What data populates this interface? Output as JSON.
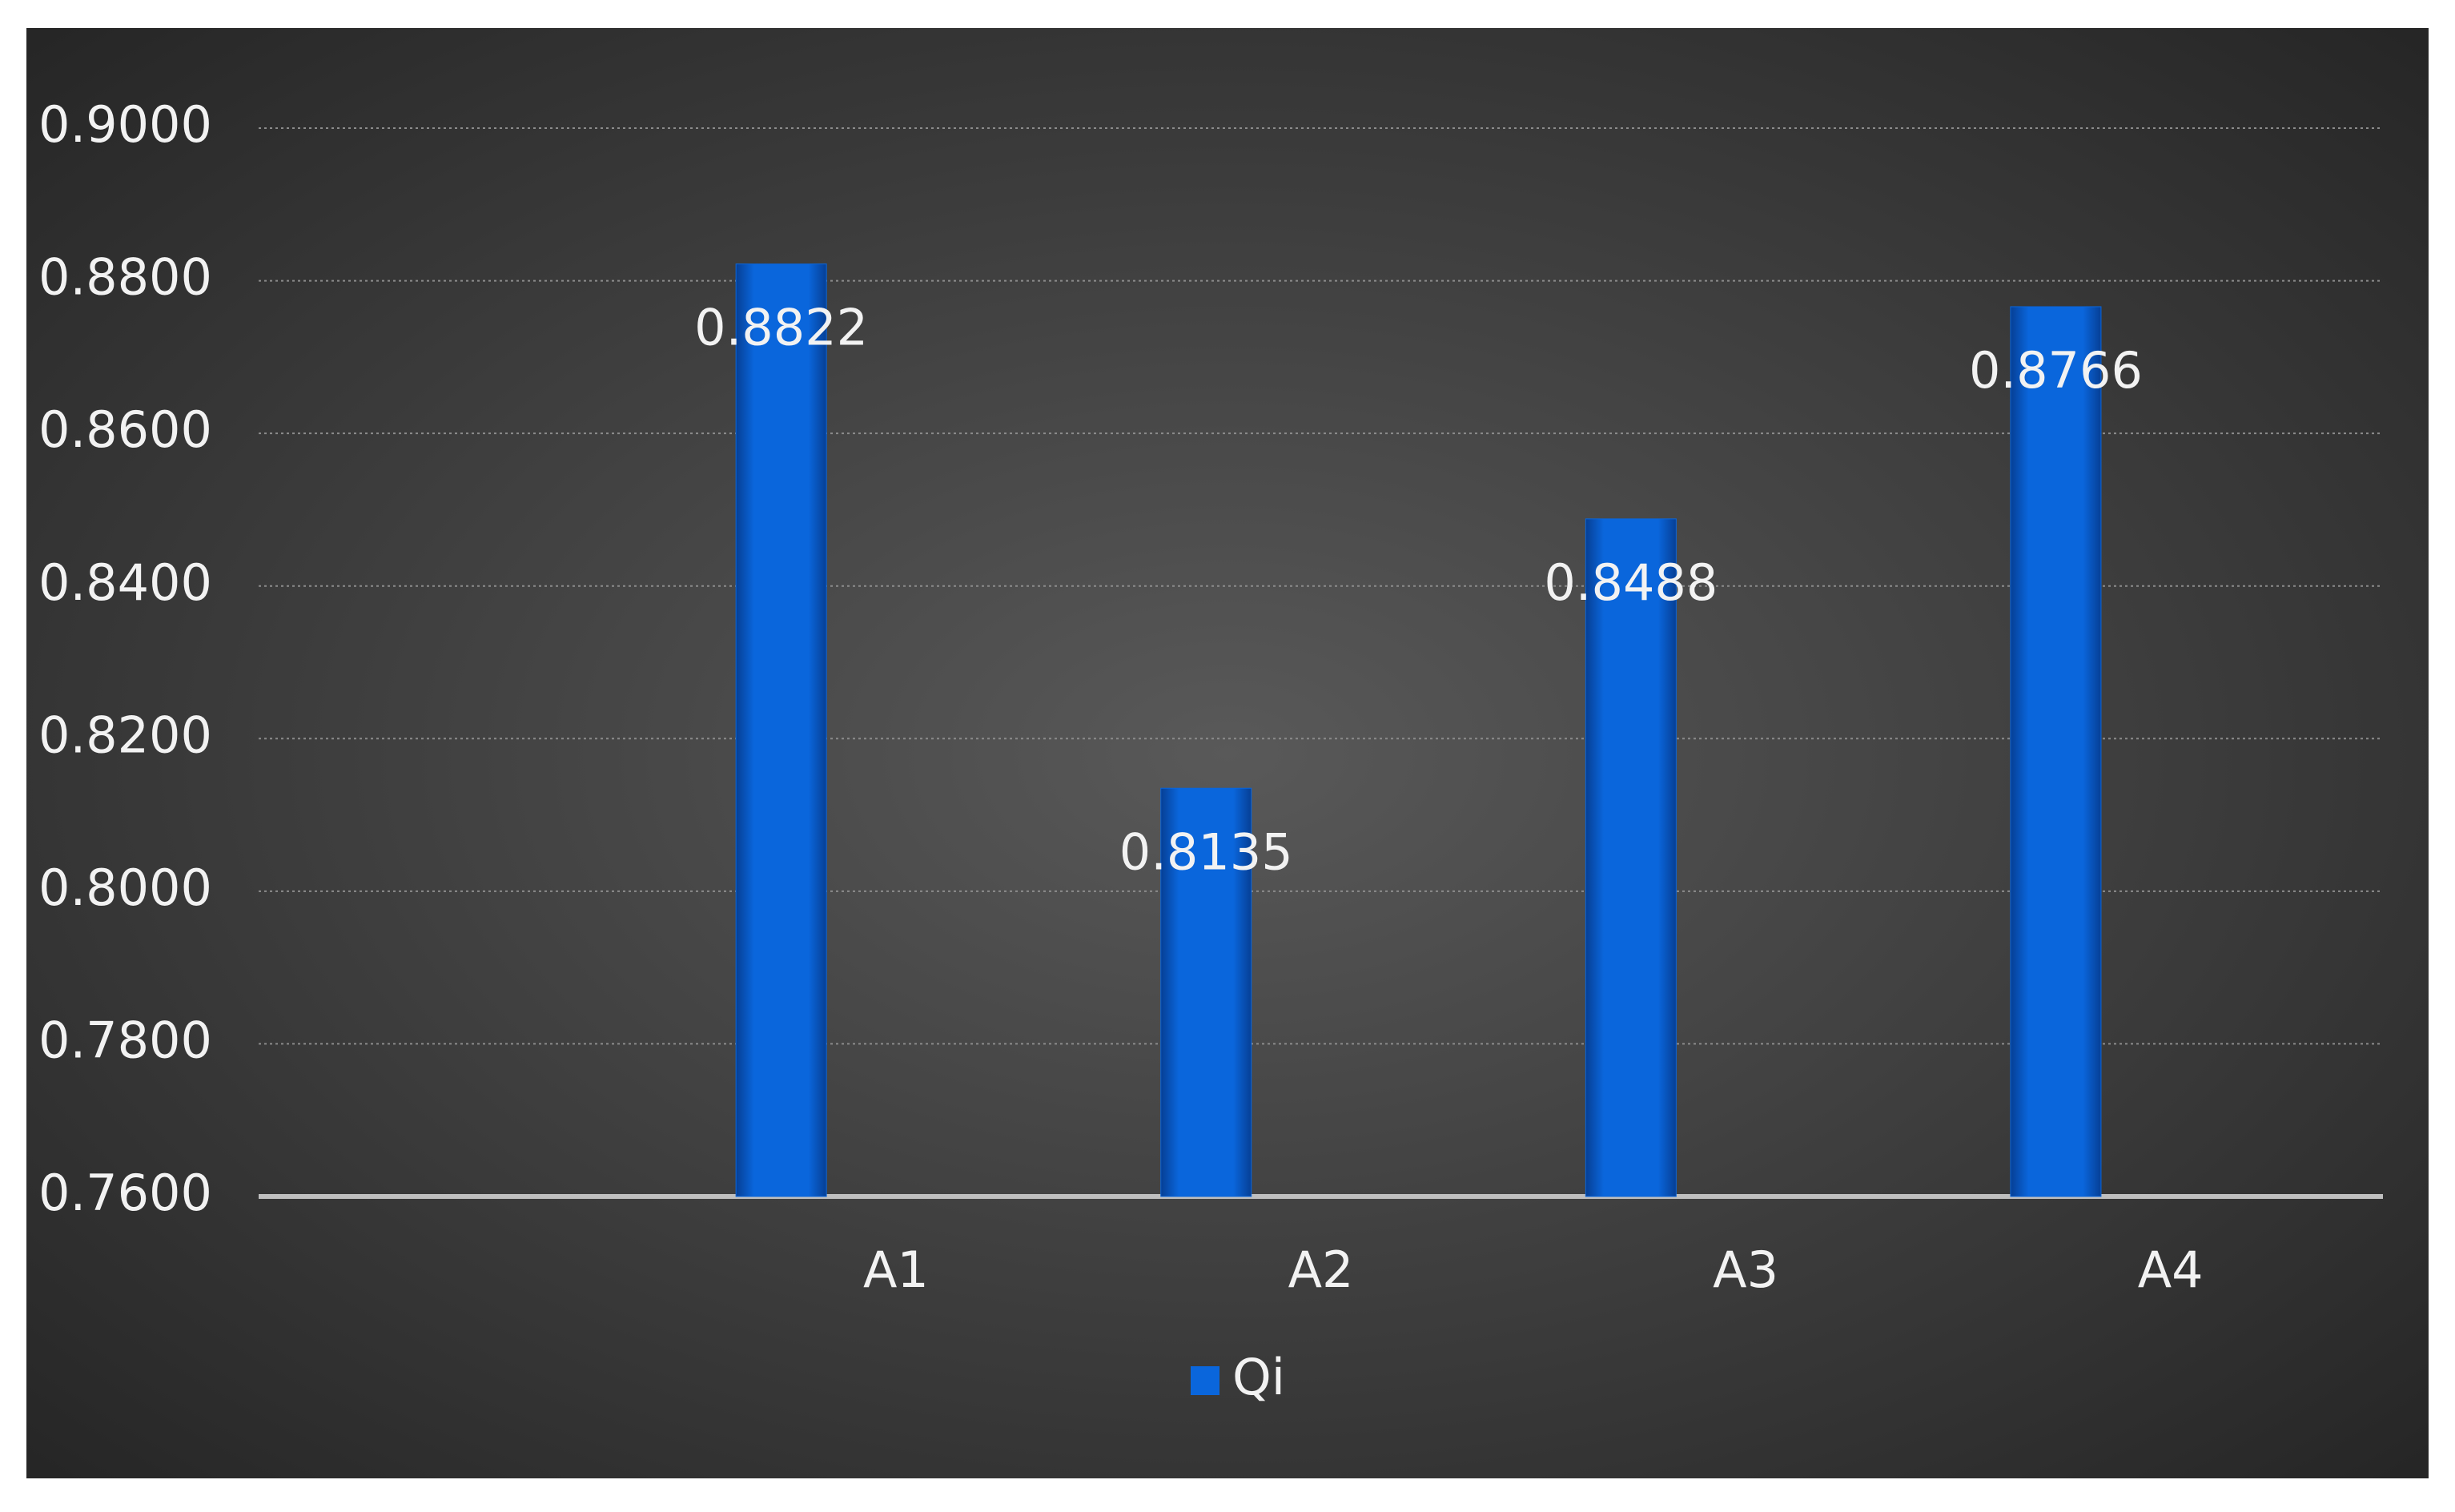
{
  "chart_data": {
    "type": "bar",
    "categories": [
      null,
      "A1",
      "A2",
      "A3",
      "A4"
    ],
    "series": [
      {
        "name": "Qi",
        "color": "#0a66dc",
        "values": [
          null,
          0.8822,
          0.8135,
          0.8488,
          0.8766
        ]
      }
    ],
    "ylim": [
      0.76,
      0.9
    ],
    "yticks": [
      {
        "value": 0.76,
        "label": "0.7600"
      },
      {
        "value": 0.78,
        "label": "0.7800"
      },
      {
        "value": 0.8,
        "label": "0.8000"
      },
      {
        "value": 0.82,
        "label": "0.8200"
      },
      {
        "value": 0.84,
        "label": "0.8400"
      },
      {
        "value": 0.86,
        "label": "0.8600"
      },
      {
        "value": 0.88,
        "label": "0.8800"
      },
      {
        "value": 0.9,
        "label": "0.9000"
      }
    ],
    "grid": true,
    "legend": "bottom"
  }
}
